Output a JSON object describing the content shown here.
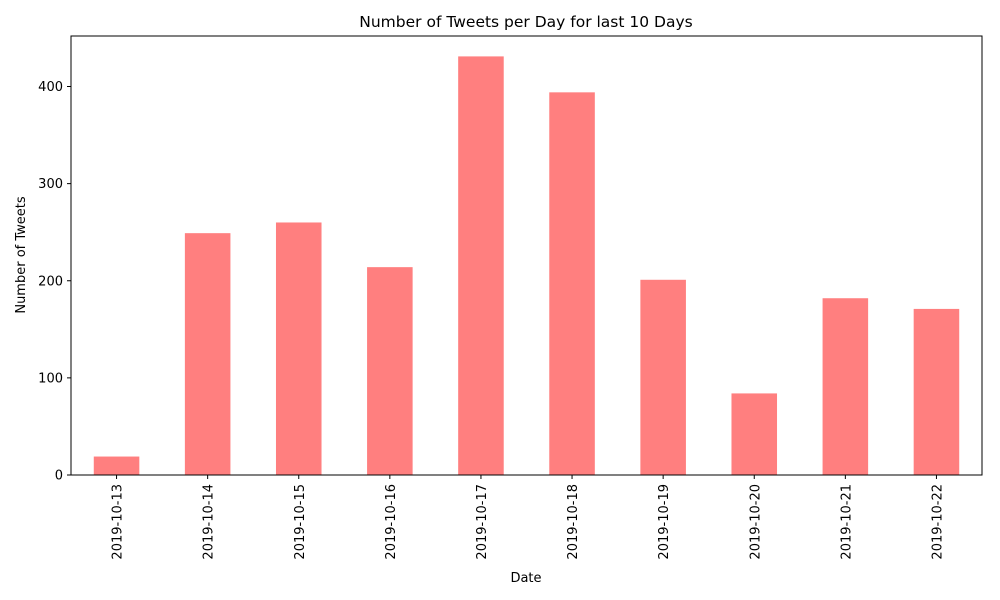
{
  "chart_data": {
    "type": "bar",
    "title": "Number of Tweets per Day for last 10 Days",
    "xlabel": "Date",
    "ylabel": "Number of Tweets",
    "categories": [
      "2019-10-13",
      "2019-10-14",
      "2019-10-15",
      "2019-10-16",
      "2019-10-17",
      "2019-10-18",
      "2019-10-19",
      "2019-10-20",
      "2019-10-21",
      "2019-10-22"
    ],
    "values": [
      19,
      249,
      260,
      214,
      431,
      394,
      201,
      84,
      182,
      171
    ],
    "ylim": [
      0,
      452
    ],
    "yticks": [
      0,
      100,
      200,
      300,
      400
    ],
    "bar_color": "#ff7f7f",
    "grid": false,
    "legend": "none"
  }
}
